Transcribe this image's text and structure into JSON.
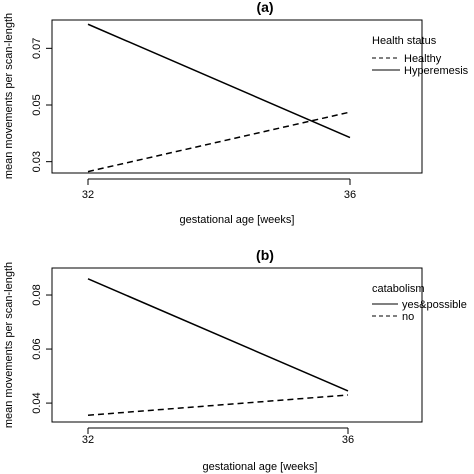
{
  "chart_data": [
    {
      "type": "line",
      "panel_label": "(a)",
      "title": "",
      "xlabel": "gestational age [weeks]",
      "ylabel": "mean movements per scan-length",
      "x": [
        32,
        36
      ],
      "xticks": [
        "32",
        "36"
      ],
      "yticks": [
        0.03,
        0.05,
        0.07
      ],
      "ytick_labels": [
        "0.03",
        "0.05",
        "0.07"
      ],
      "ylim": [
        0.026,
        0.08
      ],
      "grid": false,
      "legend": {
        "title": "Health status",
        "placement": "top-right",
        "entries": [
          {
            "label": "Healthy",
            "dash": "dashed"
          },
          {
            "label": "Hyperemesis",
            "dash": "solid"
          }
        ]
      },
      "series": [
        {
          "name": "Healthy",
          "dash": "dashed",
          "values": [
            0.0265,
            0.0475
          ]
        },
        {
          "name": "Hyperemesis",
          "dash": "solid",
          "values": [
            0.0785,
            0.0385
          ]
        }
      ]
    },
    {
      "type": "line",
      "panel_label": "(b)",
      "title": "",
      "xlabel": "gestational age [weeks]",
      "ylabel": "mean movements per scan-length",
      "x": [
        32,
        36
      ],
      "xticks": [
        "32",
        "36"
      ],
      "yticks": [
        0.04,
        0.06,
        0.08
      ],
      "ytick_labels": [
        "0.04",
        "0.06",
        "0.08"
      ],
      "ylim": [
        0.033,
        0.09
      ],
      "grid": false,
      "legend": {
        "title": "catabolism",
        "placement": "top-right",
        "entries": [
          {
            "label": "yes&possible",
            "dash": "solid"
          },
          {
            "label": "no",
            "dash": "dashed"
          }
        ]
      },
      "series": [
        {
          "name": "yes&possible",
          "dash": "solid",
          "values": [
            0.086,
            0.0445
          ]
        },
        {
          "name": "no",
          "dash": "dashed",
          "values": [
            0.0355,
            0.043
          ]
        }
      ]
    }
  ]
}
